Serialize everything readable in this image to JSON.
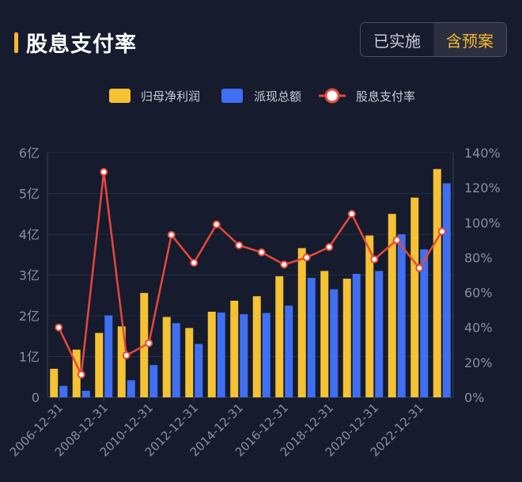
{
  "header": {
    "title": "股息支付率",
    "toggle": {
      "option_a": "已实施",
      "option_b": "含预案",
      "selected": "含预案"
    }
  },
  "colors": {
    "profit": "#f5c233",
    "dividend": "#3f6ff2",
    "ratio": "#e8483a",
    "accent": "#f5b82e"
  },
  "chart_data": {
    "type": "bar",
    "categories": [
      "2006-12-31",
      "2007-12-31",
      "2008-12-31",
      "2009-12-31",
      "2010-12-31",
      "2011-12-31",
      "2012-12-31",
      "2013-12-31",
      "2014-12-31",
      "2015-12-31",
      "2016-12-31",
      "2017-12-31",
      "2018-12-31",
      "2019-12-31",
      "2020-12-31",
      "2021-12-31",
      "2022-12-31",
      "2023-12-31"
    ],
    "x_tick_labels": [
      "2006-12-31",
      "2008-12-31",
      "2010-12-31",
      "2012-12-31",
      "2014-12-31",
      "2016-12-31",
      "2018-12-31",
      "2020-12-31",
      "2022-12-31"
    ],
    "series": [
      {
        "name": "归母净利润",
        "kind": "bar",
        "axis": "left",
        "values": [
          0.7,
          1.17,
          1.58,
          1.74,
          2.56,
          1.97,
          1.7,
          2.1,
          2.37,
          2.48,
          2.97,
          3.66,
          3.1,
          2.91,
          3.97,
          4.5,
          4.9,
          5.6
        ]
      },
      {
        "name": "派现总额",
        "kind": "bar",
        "axis": "left",
        "values": [
          0.28,
          0.16,
          2.01,
          0.42,
          0.79,
          1.82,
          1.31,
          2.08,
          2.04,
          2.07,
          2.25,
          2.93,
          2.65,
          3.03,
          3.1,
          4.0,
          3.63,
          5.25
        ]
      },
      {
        "name": "股息支付率",
        "kind": "line",
        "axis": "right",
        "values": [
          40,
          13,
          129,
          24,
          31,
          93,
          77,
          99,
          87,
          83,
          76,
          80,
          86,
          105,
          79,
          90,
          74,
          95
        ]
      }
    ],
    "y_left": {
      "min": 0,
      "max": 6,
      "ticks": [
        "0",
        "1亿",
        "2亿",
        "3亿",
        "4亿",
        "5亿",
        "6亿"
      ]
    },
    "y_right": {
      "min": 0,
      "max": 140,
      "ticks": [
        "0%",
        "20%",
        "40%",
        "60%",
        "80%",
        "100%",
        "120%",
        "140%"
      ]
    },
    "grid": true,
    "legend_position": "top-center"
  }
}
